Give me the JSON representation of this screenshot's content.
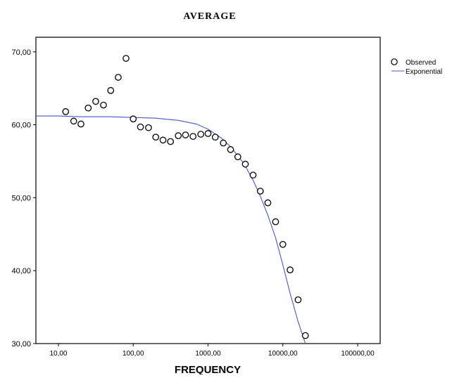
{
  "chart_data": {
    "type": "scatter",
    "title": "AVERAGE",
    "xlabel": "FREQUENCY",
    "ylabel": "",
    "x_scale": "log",
    "xlim": [
      5,
      200000
    ],
    "ylim": [
      30,
      72
    ],
    "x_ticks": [
      {
        "value": 10,
        "label": "10,00"
      },
      {
        "value": 100,
        "label": "100,00"
      },
      {
        "value": 1000,
        "label": "1000,00"
      },
      {
        "value": 10000,
        "label": "10000,00"
      },
      {
        "value": 100000,
        "label": "100000,00"
      }
    ],
    "y_ticks": [
      {
        "value": 30,
        "label": "30,00"
      },
      {
        "value": 40,
        "label": "40,00"
      },
      {
        "value": 50,
        "label": "50,00"
      },
      {
        "value": 60,
        "label": "60,00"
      },
      {
        "value": 70,
        "label": "70,00"
      }
    ],
    "grid": false,
    "legend_position": "top-right",
    "series": [
      {
        "name": "Observed",
        "kind": "scatter",
        "marker": "circle",
        "color": "#000000",
        "points": [
          {
            "x": 12.5,
            "y": 61.8
          },
          {
            "x": 16,
            "y": 60.5
          },
          {
            "x": 20,
            "y": 60.1
          },
          {
            "x": 25,
            "y": 62.3
          },
          {
            "x": 31.5,
            "y": 63.2
          },
          {
            "x": 40,
            "y": 62.7
          },
          {
            "x": 50,
            "y": 64.7
          },
          {
            "x": 63,
            "y": 66.5
          },
          {
            "x": 80,
            "y": 69.1
          },
          {
            "x": 100,
            "y": 60.8
          },
          {
            "x": 125,
            "y": 59.7
          },
          {
            "x": 160,
            "y": 59.6
          },
          {
            "x": 200,
            "y": 58.3
          },
          {
            "x": 250,
            "y": 57.9
          },
          {
            "x": 315,
            "y": 57.7
          },
          {
            "x": 400,
            "y": 58.5
          },
          {
            "x": 500,
            "y": 58.6
          },
          {
            "x": 630,
            "y": 58.4
          },
          {
            "x": 800,
            "y": 58.7
          },
          {
            "x": 1000,
            "y": 58.8
          },
          {
            "x": 1250,
            "y": 58.3
          },
          {
            "x": 1600,
            "y": 57.5
          },
          {
            "x": 2000,
            "y": 56.6
          },
          {
            "x": 2500,
            "y": 55.6
          },
          {
            "x": 3150,
            "y": 54.6
          },
          {
            "x": 4000,
            "y": 53.1
          },
          {
            "x": 5000,
            "y": 50.9
          },
          {
            "x": 6300,
            "y": 49.3
          },
          {
            "x": 8000,
            "y": 46.7
          },
          {
            "x": 10000,
            "y": 43.6
          },
          {
            "x": 12500,
            "y": 40.1
          },
          {
            "x": 16000,
            "y": 36.0
          },
          {
            "x": 20000,
            "y": 31.1
          }
        ]
      },
      {
        "name": "Exponential",
        "kind": "line",
        "color": "#4455cc",
        "points": [
          {
            "x": 5,
            "y": 61.2
          },
          {
            "x": 10,
            "y": 61.2
          },
          {
            "x": 20,
            "y": 61.1
          },
          {
            "x": 50,
            "y": 61.1
          },
          {
            "x": 100,
            "y": 61.0
          },
          {
            "x": 200,
            "y": 60.9
          },
          {
            "x": 400,
            "y": 60.6
          },
          {
            "x": 700,
            "y": 60.1
          },
          {
            "x": 1000,
            "y": 59.4
          },
          {
            "x": 1500,
            "y": 58.2
          },
          {
            "x": 2000,
            "y": 57.0
          },
          {
            "x": 3000,
            "y": 54.7
          },
          {
            "x": 4000,
            "y": 52.4
          },
          {
            "x": 5000,
            "y": 50.2
          },
          {
            "x": 6300,
            "y": 47.6
          },
          {
            "x": 8000,
            "y": 44.5
          },
          {
            "x": 10000,
            "y": 40.8
          },
          {
            "x": 12500,
            "y": 36.9
          },
          {
            "x": 16000,
            "y": 33.0
          },
          {
            "x": 20000,
            "y": 30.0
          }
        ]
      }
    ]
  }
}
